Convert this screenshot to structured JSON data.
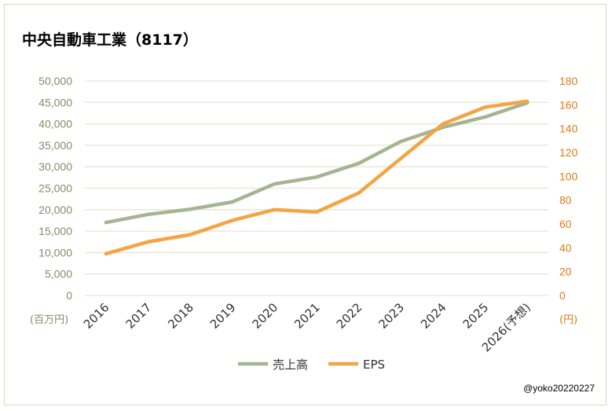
{
  "title": "中央自動車工業（8117）",
  "credit": "@yoko20220227",
  "chart_data": {
    "type": "line",
    "title": "中央自動車工業（8117）",
    "categories": [
      "2016",
      "2017",
      "2018",
      "2019",
      "2020",
      "2021",
      "2022",
      "2023",
      "2024",
      "2025",
      "2026(予想)"
    ],
    "series": [
      {
        "name": "売上高",
        "axis": "left",
        "color": "#a5b592",
        "values": [
          17000,
          18900,
          20100,
          21800,
          26000,
          27600,
          30800,
          35900,
          39200,
          41600,
          44900
        ]
      },
      {
        "name": "EPS",
        "axis": "right",
        "color": "#f4a443",
        "values": [
          35,
          45,
          51,
          63,
          72,
          70,
          86,
          115,
          144,
          158,
          163
        ]
      }
    ],
    "y_left": {
      "label": "(百万円)",
      "range": [
        0,
        50000
      ],
      "ticks": [
        "0",
        "5,000",
        "10,000",
        "15,000",
        "20,000",
        "25,000",
        "30,000",
        "35,000",
        "40,000",
        "45,000",
        "50,000"
      ],
      "color": "#7f8f6a"
    },
    "y_right": {
      "label": "(円)",
      "range": [
        0,
        180
      ],
      "ticks": [
        "0",
        "20",
        "40",
        "60",
        "80",
        "100",
        "120",
        "140",
        "160",
        "180"
      ],
      "color": "#e07b12"
    },
    "grid": true,
    "legend": "bottom"
  }
}
